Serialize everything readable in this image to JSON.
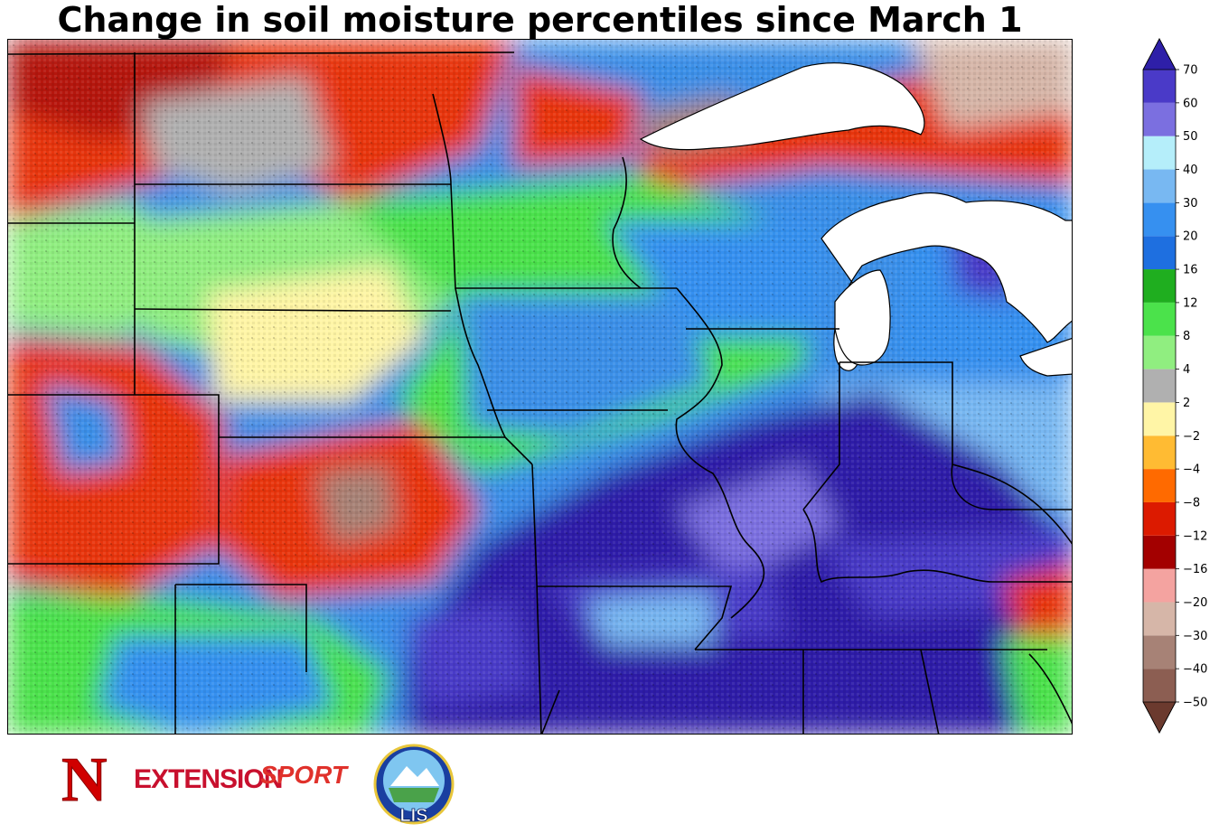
{
  "title": "Change in soil moisture percentiles since March 1",
  "colorbar": {
    "labels": [
      "-50",
      "-40",
      "-30",
      "-20",
      "-16",
      "-12",
      "-8",
      "-4",
      "-2",
      "2",
      "4",
      "8",
      "12",
      "16",
      "20",
      "30",
      "40",
      "50",
      "60",
      "70"
    ],
    "colors_bottom_to_top": [
      "#6b3a2e",
      "#8c5e52",
      "#a78276",
      "#d6b6a8",
      "#f4a3a0",
      "#a30000",
      "#dc1a00",
      "#ff6a00",
      "#ffbb33",
      "#fff5a6",
      "#b0b0b0",
      "#90ee80",
      "#4be24b",
      "#1fae1f",
      "#1e6fe0",
      "#3690f0",
      "#78b8f2",
      "#b5eefa",
      "#7b6fe0",
      "#4a3ac8",
      "#2e1fa8"
    ],
    "under_color": "#6b3a2e",
    "over_color": "#2e1fa8"
  },
  "logos": {
    "nebraska": "N",
    "extension": "EXTENSION",
    "sport": "SPORT",
    "lis": "LIS"
  }
}
